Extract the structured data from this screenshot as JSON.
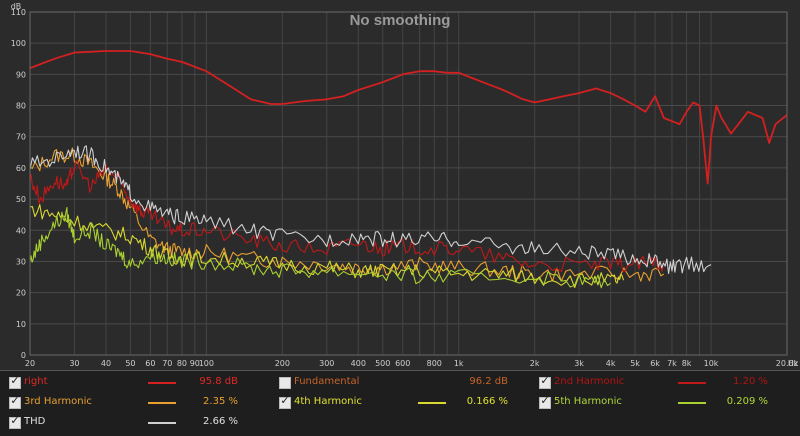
{
  "chart_data": {
    "type": "line",
    "title": "No smoothing",
    "ylabel": "dB",
    "xunit": "Hz",
    "x_scale": "log",
    "xlim": [
      20,
      20000
    ],
    "ylim": [
      0,
      110
    ],
    "grid": true,
    "y_ticks": [
      "0",
      "10",
      "20",
      "30",
      "40",
      "50",
      "60",
      "70",
      "80",
      "90",
      "100",
      "110"
    ],
    "x_ticks": [
      {
        "v": 20,
        "t": "20"
      },
      {
        "v": 30,
        "t": "30"
      },
      {
        "v": 40,
        "t": "40"
      },
      {
        "v": 50,
        "t": "50"
      },
      {
        "v": 60,
        "t": "60"
      },
      {
        "v": 70,
        "t": "70"
      },
      {
        "v": 80,
        "t": "80"
      },
      {
        "v": 90,
        "t": "90"
      },
      {
        "v": 100,
        "t": "100"
      },
      {
        "v": 200,
        "t": "200"
      },
      {
        "v": 300,
        "t": "300"
      },
      {
        "v": 400,
        "t": "400"
      },
      {
        "v": 500,
        "t": "500"
      },
      {
        "v": 600,
        "t": "600"
      },
      {
        "v": 800,
        "t": "800"
      },
      {
        "v": 1000,
        "t": "1k"
      },
      {
        "v": 2000,
        "t": "2k"
      },
      {
        "v": 3000,
        "t": "3k"
      },
      {
        "v": 4000,
        "t": "4k"
      },
      {
        "v": 5000,
        "t": "5k"
      },
      {
        "v": 6000,
        "t": "6k"
      },
      {
        "v": 7000,
        "t": "7k"
      },
      {
        "v": 8000,
        "t": "8k"
      },
      {
        "v": 10000,
        "t": "10k"
      },
      {
        "v": 20000,
        "t": "20.0k"
      }
    ],
    "series": [
      {
        "name": "3rd Harmonic",
        "color": "#e8a030",
        "points": [
          [
            20,
            59
          ],
          [
            25,
            64
          ],
          [
            30,
            64
          ],
          [
            35,
            61
          ],
          [
            40,
            57
          ],
          [
            45,
            53
          ],
          [
            50,
            47
          ],
          [
            60,
            37
          ],
          [
            70,
            34
          ],
          [
            80,
            33
          ],
          [
            100,
            33
          ],
          [
            150,
            31
          ],
          [
            200,
            30
          ],
          [
            300,
            29
          ],
          [
            400,
            28
          ],
          [
            500,
            28
          ],
          [
            700,
            29
          ],
          [
            1000,
            28
          ],
          [
            1500,
            27
          ],
          [
            2000,
            26
          ],
          [
            3000,
            26
          ],
          [
            5000,
            26
          ],
          [
            6500,
            26
          ]
        ]
      },
      {
        "name": "4th Harmonic",
        "color": "#d8d830",
        "points": [
          [
            20,
            47
          ],
          [
            25,
            45
          ],
          [
            30,
            43
          ],
          [
            40,
            40
          ],
          [
            50,
            38
          ],
          [
            60,
            34
          ],
          [
            70,
            32
          ],
          [
            80,
            31
          ],
          [
            100,
            31
          ],
          [
            150,
            30
          ],
          [
            200,
            29
          ],
          [
            300,
            28
          ],
          [
            400,
            27
          ],
          [
            500,
            27
          ],
          [
            700,
            27
          ],
          [
            1000,
            26
          ],
          [
            1500,
            26
          ],
          [
            2000,
            25
          ],
          [
            3000,
            24
          ],
          [
            4000,
            24
          ],
          [
            4500,
            24
          ]
        ]
      },
      {
        "name": "5th Harmonic",
        "color": "#a8d030",
        "points": [
          [
            20,
            30
          ],
          [
            22,
            36
          ],
          [
            25,
            42
          ],
          [
            28,
            45
          ],
          [
            30,
            38
          ],
          [
            35,
            40
          ],
          [
            40,
            35
          ],
          [
            45,
            33
          ],
          [
            50,
            29
          ],
          [
            60,
            32
          ],
          [
            70,
            31
          ],
          [
            80,
            30
          ],
          [
            100,
            30
          ],
          [
            150,
            28
          ],
          [
            200,
            27
          ],
          [
            300,
            27
          ],
          [
            500,
            26
          ],
          [
            700,
            25
          ],
          [
            1000,
            25
          ],
          [
            2000,
            25
          ],
          [
            3000,
            24
          ],
          [
            4000,
            23
          ]
        ]
      },
      {
        "name": "2nd Harmonic",
        "color": "#c01818",
        "points": [
          [
            20,
            57
          ],
          [
            22,
            50
          ],
          [
            25,
            56
          ],
          [
            28,
            54
          ],
          [
            30,
            61
          ],
          [
            35,
            54
          ],
          [
            40,
            60
          ],
          [
            45,
            56
          ],
          [
            50,
            50
          ],
          [
            55,
            46
          ],
          [
            60,
            45
          ],
          [
            70,
            41
          ],
          [
            80,
            40
          ],
          [
            100,
            40
          ],
          [
            150,
            37
          ],
          [
            200,
            35
          ],
          [
            300,
            34
          ],
          [
            400,
            36
          ],
          [
            500,
            34
          ],
          [
            600,
            35
          ],
          [
            800,
            34
          ],
          [
            1000,
            34
          ],
          [
            1500,
            31
          ],
          [
            2000,
            29
          ],
          [
            3000,
            29
          ],
          [
            4000,
            29
          ],
          [
            5000,
            29
          ],
          [
            6000,
            30
          ],
          [
            6500,
            29
          ]
        ]
      },
      {
        "name": "THD",
        "color": "#d0d0d0",
        "points": [
          [
            20,
            61
          ],
          [
            25,
            63
          ],
          [
            30,
            66
          ],
          [
            35,
            64
          ],
          [
            40,
            60
          ],
          [
            45,
            56
          ],
          [
            50,
            52
          ],
          [
            60,
            47
          ],
          [
            70,
            45
          ],
          [
            80,
            44
          ],
          [
            100,
            43
          ],
          [
            150,
            40
          ],
          [
            200,
            38
          ],
          [
            300,
            37
          ],
          [
            400,
            38
          ],
          [
            500,
            37
          ],
          [
            600,
            37
          ],
          [
            800,
            37
          ],
          [
            1000,
            37
          ],
          [
            1500,
            35
          ],
          [
            2000,
            34
          ],
          [
            3000,
            33
          ],
          [
            4000,
            32
          ],
          [
            5000,
            31
          ],
          [
            6000,
            30
          ],
          [
            7000,
            28
          ],
          [
            8000,
            29
          ],
          [
            10000,
            29
          ]
        ]
      },
      {
        "name": "right",
        "color": "#d42020",
        "points": [
          [
            20,
            92
          ],
          [
            25,
            95
          ],
          [
            30,
            97
          ],
          [
            40,
            97.5
          ],
          [
            50,
            97.5
          ],
          [
            60,
            96.5
          ],
          [
            70,
            95
          ],
          [
            80,
            94
          ],
          [
            100,
            91
          ],
          [
            120,
            87
          ],
          [
            150,
            82
          ],
          [
            180,
            80.5
          ],
          [
            200,
            80.5
          ],
          [
            250,
            81.5
          ],
          [
            300,
            82
          ],
          [
            350,
            83
          ],
          [
            400,
            85
          ],
          [
            500,
            87.5
          ],
          [
            600,
            90
          ],
          [
            700,
            91
          ],
          [
            800,
            91
          ],
          [
            900,
            90.5
          ],
          [
            1000,
            90.5
          ],
          [
            1200,
            88
          ],
          [
            1500,
            85
          ],
          [
            1800,
            82
          ],
          [
            2000,
            81
          ],
          [
            2300,
            82
          ],
          [
            2600,
            83
          ],
          [
            3000,
            84
          ],
          [
            3500,
            85.5
          ],
          [
            4000,
            84
          ],
          [
            4500,
            82
          ],
          [
            5000,
            80
          ],
          [
            5500,
            78
          ],
          [
            6000,
            83
          ],
          [
            6500,
            76
          ],
          [
            7000,
            75
          ],
          [
            7500,
            74
          ],
          [
            8000,
            78
          ],
          [
            8500,
            81
          ],
          [
            9000,
            80
          ],
          [
            9300,
            70
          ],
          [
            9700,
            55
          ],
          [
            10000,
            70
          ],
          [
            10500,
            80
          ],
          [
            11000,
            76
          ],
          [
            12000,
            71
          ],
          [
            14000,
            78
          ],
          [
            16000,
            76
          ],
          [
            17000,
            68
          ],
          [
            18000,
            74
          ],
          [
            20000,
            77
          ]
        ]
      }
    ]
  },
  "legend": [
    {
      "label": "right",
      "checked": true,
      "value": "95.8 dB",
      "text_color": "#e02828",
      "line_color": "#d42020",
      "line": true
    },
    {
      "label": "Fundamental",
      "checked": false,
      "value": "96.2 dB",
      "text_color": "#c86428",
      "line_color": "",
      "line": false
    },
    {
      "label": "2nd Harmonic",
      "checked": true,
      "value": "1.20 %",
      "text_color": "#b01414",
      "line_color": "#c01818",
      "line": true
    },
    {
      "label": "3rd Harmonic",
      "checked": true,
      "value": "2.35 %",
      "text_color": "#e8a030",
      "line_color": "#e8a030",
      "line": true
    },
    {
      "label": "4th Harmonic",
      "checked": true,
      "value": "0.166 %",
      "text_color": "#e0e030",
      "line_color": "#d8d830",
      "line": true
    },
    {
      "label": "5th Harmonic",
      "checked": true,
      "value": "0.209 %",
      "text_color": "#b0d838",
      "line_color": "#a8d030",
      "line": true
    },
    {
      "label": "THD",
      "checked": true,
      "value": "2.66 %",
      "text_color": "#e0e0e0",
      "line_color": "#d0d0d0",
      "line": true
    }
  ]
}
